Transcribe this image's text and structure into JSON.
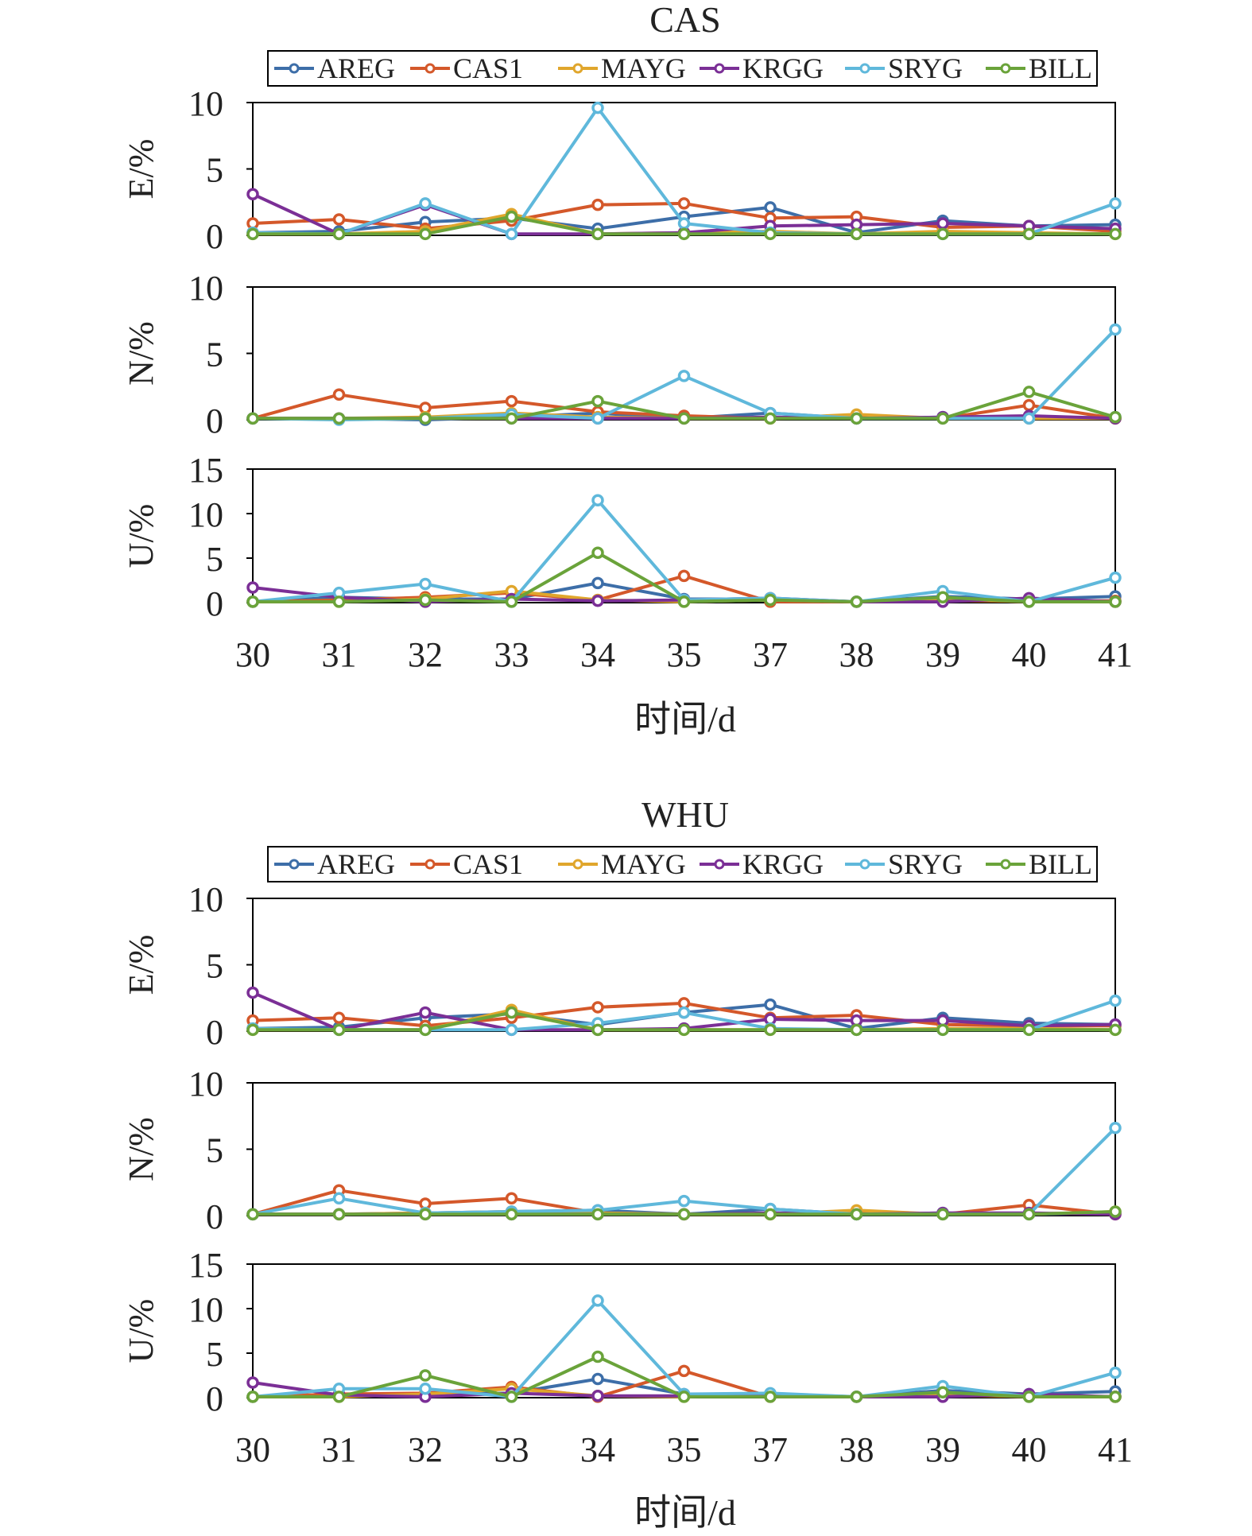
{
  "station_colors": {
    "AREG": "#3d6ea8",
    "CAS1": "#d4582a",
    "MAYG": "#e0a62c",
    "KRGG": "#7b2f96",
    "SRYG": "#5fb8db",
    "BILL": "#6aa33a"
  },
  "legend": [
    "AREG",
    "CAS1",
    "MAYG",
    "KRGG",
    "SRYG",
    "BILL"
  ],
  "chart_data": [
    {
      "type": "line",
      "title": "CAS",
      "xlabel": "时间/d",
      "categories": [
        "30",
        "31",
        "32",
        "33",
        "34",
        "35",
        "37",
        "38",
        "39",
        "40",
        "41"
      ],
      "panels": [
        {
          "ylabel": "E/%",
          "ylim": [
            0,
            10
          ],
          "yticks": [
            "0",
            "5",
            "10"
          ],
          "series": [
            {
              "name": "AREG",
              "values": [
                0.2,
                0.3,
                1.0,
                1.3,
                0.5,
                1.4,
                2.1,
                0.2,
                1.1,
                0.7,
                0.8
              ]
            },
            {
              "name": "CAS1",
              "values": [
                0.9,
                1.2,
                0.5,
                1.1,
                2.3,
                2.4,
                1.3,
                1.4,
                0.6,
                0.7,
                0.3
              ]
            },
            {
              "name": "MAYG",
              "values": [
                0.1,
                0.1,
                0.3,
                1.6,
                0.1,
                0.2,
                0.3,
                0.1,
                0.3,
                0.2,
                0.1
              ]
            },
            {
              "name": "KRGG",
              "values": [
                3.1,
                0.1,
                2.3,
                0.1,
                0.1,
                0.2,
                0.7,
                0.8,
                0.9,
                0.7,
                0.5
              ]
            },
            {
              "name": "SRYG",
              "values": [
                0.2,
                0.1,
                2.4,
                0.1,
                9.6,
                0.9,
                0.2,
                0.1,
                0.1,
                0.1,
                2.4
              ]
            },
            {
              "name": "BILL",
              "values": [
                0.1,
                0.1,
                0.1,
                1.4,
                0.1,
                0.1,
                0.1,
                0.1,
                0.1,
                0.1,
                0.1
              ]
            }
          ]
        },
        {
          "ylabel": "N/%",
          "ylim": [
            0,
            10
          ],
          "yticks": [
            "0",
            "5",
            "10"
          ],
          "series": [
            {
              "name": "AREG",
              "values": [
                0.1,
                0.1,
                0.0,
                0.2,
                0.5,
                0.1,
                0.5,
                0.1,
                0.2,
                0.1,
                0.2
              ]
            },
            {
              "name": "CAS1",
              "values": [
                0.1,
                1.9,
                0.9,
                1.4,
                0.6,
                0.3,
                0.1,
                0.2,
                0.1,
                1.1,
                0.1
              ]
            },
            {
              "name": "MAYG",
              "values": [
                0.1,
                0.1,
                0.2,
                0.5,
                0.2,
                0.1,
                0.1,
                0.4,
                0.1,
                0.1,
                0.1
              ]
            },
            {
              "name": "KRGG",
              "values": [
                0.1,
                0.1,
                0.1,
                0.1,
                0.1,
                0.1,
                0.2,
                0.1,
                0.2,
                0.3,
                0.1
              ]
            },
            {
              "name": "SRYG",
              "values": [
                0.1,
                0.0,
                0.1,
                0.4,
                0.1,
                3.3,
                0.5,
                0.1,
                0.1,
                0.1,
                6.8
              ]
            },
            {
              "name": "BILL",
              "values": [
                0.1,
                0.1,
                0.1,
                0.1,
                1.4,
                0.1,
                0.1,
                0.1,
                0.1,
                2.1,
                0.2
              ]
            }
          ]
        },
        {
          "ylabel": "U/%",
          "ylim": [
            0,
            15
          ],
          "yticks": [
            "0",
            "5",
            "10",
            "15"
          ],
          "series": [
            {
              "name": "AREG",
              "values": [
                0.1,
                0.6,
                0.4,
                0.4,
                2.2,
                0.4,
                0.4,
                0.1,
                0.7,
                0.4,
                0.7
              ]
            },
            {
              "name": "CAS1",
              "values": [
                0.1,
                0.3,
                0.6,
                1.1,
                0.3,
                3.0,
                0.1,
                0.1,
                0.2,
                0.2,
                0.2
              ]
            },
            {
              "name": "MAYG",
              "values": [
                0.1,
                0.1,
                0.4,
                1.3,
                0.3,
                0.1,
                0.3,
                0.1,
                0.4,
                0.1,
                0.1
              ]
            },
            {
              "name": "KRGG",
              "values": [
                1.7,
                0.6,
                0.1,
                0.4,
                0.2,
                0.3,
                0.5,
                0.1,
                0.1,
                0.5,
                0.1
              ]
            },
            {
              "name": "SRYG",
              "values": [
                0.1,
                1.1,
                2.1,
                0.1,
                11.5,
                0.3,
                0.5,
                0.1,
                1.3,
                0.1,
                2.8
              ]
            },
            {
              "name": "BILL",
              "values": [
                0.1,
                0.1,
                0.3,
                0.1,
                5.6,
                0.1,
                0.3,
                0.1,
                0.6,
                0.1,
                0.1
              ]
            }
          ]
        }
      ]
    },
    {
      "type": "line",
      "title": "WHU",
      "xlabel": "时间/d",
      "categories": [
        "30",
        "31",
        "32",
        "33",
        "34",
        "35",
        "37",
        "38",
        "39",
        "40",
        "41"
      ],
      "panels": [
        {
          "ylabel": "E/%",
          "ylim": [
            0,
            10
          ],
          "yticks": [
            "0",
            "5",
            "10"
          ],
          "series": [
            {
              "name": "AREG",
              "values": [
                0.2,
                0.3,
                1.0,
                1.3,
                0.5,
                1.4,
                2.0,
                0.2,
                1.0,
                0.6,
                0.5
              ]
            },
            {
              "name": "CAS1",
              "values": [
                0.8,
                1.0,
                0.4,
                1.0,
                1.8,
                2.1,
                1.0,
                1.2,
                0.5,
                0.4,
                0.4
              ]
            },
            {
              "name": "MAYG",
              "values": [
                0.1,
                0.1,
                0.1,
                1.6,
                0.1,
                0.1,
                0.1,
                0.1,
                0.2,
                0.2,
                0.1
              ]
            },
            {
              "name": "KRGG",
              "values": [
                2.9,
                0.1,
                1.4,
                0.1,
                0.1,
                0.2,
                0.9,
                0.8,
                0.8,
                0.4,
                0.5
              ]
            },
            {
              "name": "SRYG",
              "values": [
                0.2,
                0.1,
                0.1,
                0.1,
                0.6,
                1.4,
                0.2,
                0.1,
                0.1,
                0.1,
                2.3
              ]
            },
            {
              "name": "BILL",
              "values": [
                0.1,
                0.1,
                0.1,
                1.4,
                0.1,
                0.1,
                0.1,
                0.1,
                0.1,
                0.1,
                0.1
              ]
            }
          ]
        },
        {
          "ylabel": "N/%",
          "ylim": [
            0,
            10
          ],
          "yticks": [
            "0",
            "5",
            "10"
          ],
          "series": [
            {
              "name": "AREG",
              "values": [
                0.1,
                0.1,
                0.2,
                0.3,
                0.4,
                0.1,
                0.5,
                0.1,
                0.2,
                0.1,
                0.2
              ]
            },
            {
              "name": "CAS1",
              "values": [
                0.1,
                1.9,
                0.9,
                1.3,
                0.2,
                0.1,
                0.1,
                0.2,
                0.1,
                0.8,
                0.1
              ]
            },
            {
              "name": "MAYG",
              "values": [
                0.1,
                0.1,
                0.2,
                0.3,
                0.2,
                0.1,
                0.1,
                0.4,
                0.1,
                0.1,
                0.3
              ]
            },
            {
              "name": "KRGG",
              "values": [
                0.1,
                0.1,
                0.1,
                0.1,
                0.1,
                0.1,
                0.2,
                0.1,
                0.2,
                0.2,
                0.1
              ]
            },
            {
              "name": "SRYG",
              "values": [
                0.1,
                1.3,
                0.2,
                0.3,
                0.4,
                1.1,
                0.5,
                0.1,
                0.1,
                0.1,
                6.6
              ]
            },
            {
              "name": "BILL",
              "values": [
                0.1,
                0.1,
                0.1,
                0.1,
                0.1,
                0.1,
                0.1,
                0.1,
                0.1,
                0.1,
                0.3
              ]
            }
          ]
        },
        {
          "ylabel": "U/%",
          "ylim": [
            0,
            15
          ],
          "yticks": [
            "0",
            "5",
            "10",
            "15"
          ],
          "series": [
            {
              "name": "AREG",
              "values": [
                0.1,
                0.4,
                0.4,
                0.5,
                2.1,
                0.4,
                0.4,
                0.1,
                0.8,
                0.4,
                0.7
              ]
            },
            {
              "name": "CAS1",
              "values": [
                0.1,
                0.4,
                0.5,
                1.2,
                0.1,
                3.0,
                0.1,
                0.1,
                0.2,
                0.2,
                0.1
              ]
            },
            {
              "name": "MAYG",
              "values": [
                0.1,
                0.1,
                0.4,
                1.0,
                0.2,
                0.1,
                0.3,
                0.1,
                0.4,
                0.1,
                0.1
              ]
            },
            {
              "name": "KRGG",
              "values": [
                1.7,
                0.3,
                0.1,
                0.5,
                0.2,
                0.2,
                0.2,
                0.1,
                0.1,
                0.4,
                0.1
              ]
            },
            {
              "name": "SRYG",
              "values": [
                0.1,
                1.0,
                1.0,
                0.1,
                10.9,
                0.4,
                0.5,
                0.1,
                1.3,
                0.1,
                2.8
              ]
            },
            {
              "name": "BILL",
              "values": [
                0.1,
                0.1,
                2.5,
                0.1,
                4.6,
                0.1,
                0.1,
                0.1,
                0.6,
                0.1,
                0.1
              ]
            }
          ]
        }
      ]
    }
  ]
}
